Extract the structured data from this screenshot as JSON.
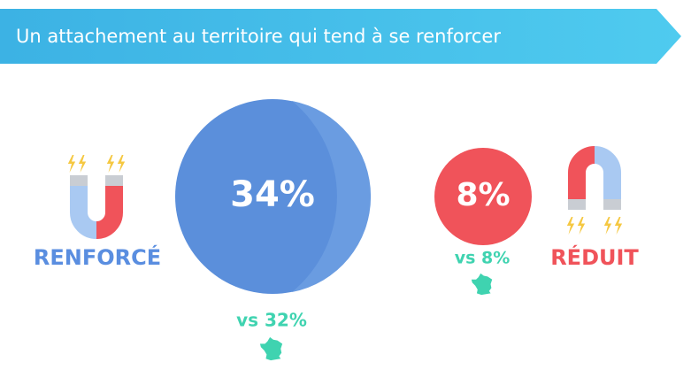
{
  "header": {
    "title": "Un attachement au territoire qui tend à se renforcer"
  },
  "reinforced": {
    "label": "RENFORCÉ",
    "value": "34%",
    "comparison": "vs 32%"
  },
  "reduced": {
    "label": "RÉDUIT",
    "value": "8%",
    "comparison": "vs 8%"
  }
}
